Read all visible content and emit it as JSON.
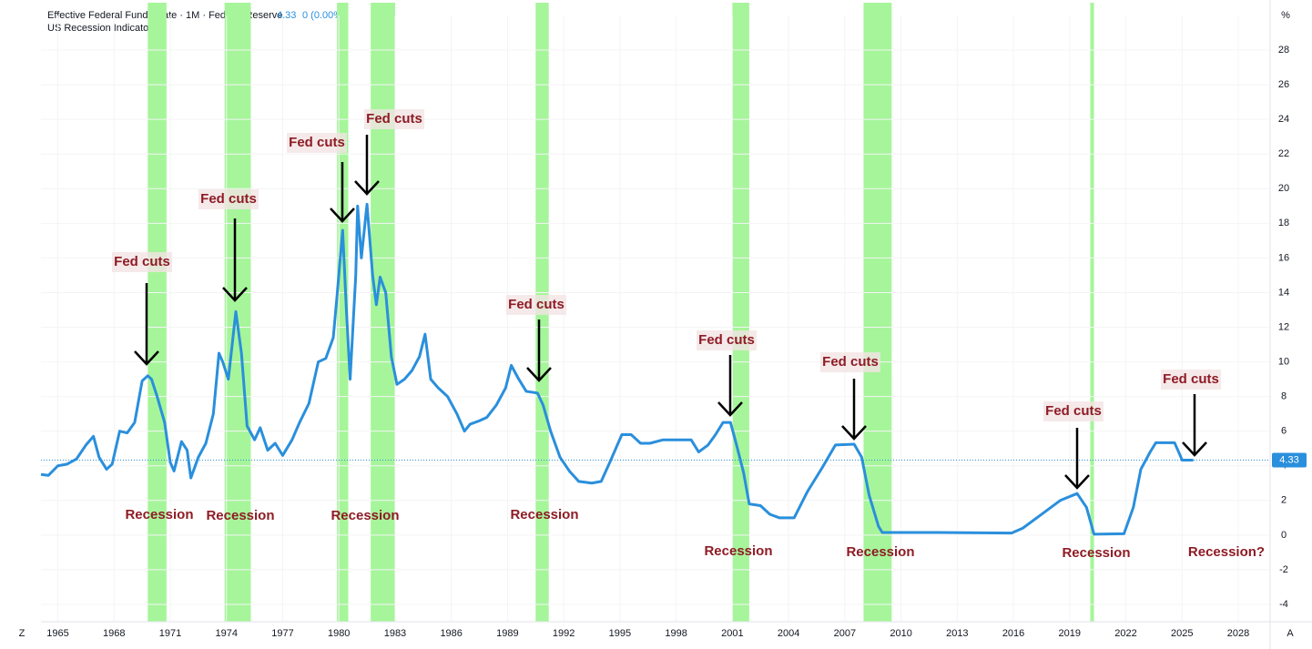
{
  "chart_data": {
    "type": "line",
    "title": "Effective Federal Funds Rate · 1M · Federal Reserve",
    "last_value": "4.33",
    "change": "0 (0.00%)",
    "recession_title": "US Recession Indicator",
    "y_unit": "%",
    "corner_left": "Z",
    "corner_right": "A",
    "series": [
      {
        "color": "#2a8fdc",
        "x": [
          1964.1,
          1964.5,
          1965.0,
          1965.5,
          1966.0,
          1966.5,
          1966.9,
          1967.2,
          1967.6,
          1967.9,
          1968.3,
          1968.7,
          1969.1,
          1969.5,
          1969.8,
          1970.0,
          1970.3,
          1970.7,
          1971.0,
          1971.2,
          1971.6,
          1971.9,
          1972.1,
          1972.5,
          1972.9,
          1973.3,
          1973.6,
          1973.8,
          1974.1,
          1974.5,
          1974.8,
          1975.1,
          1975.5,
          1975.8,
          1976.2,
          1976.6,
          1977.0,
          1977.5,
          1977.9,
          1978.4,
          1978.9,
          1979.3,
          1979.7,
          1979.9,
          1980.2,
          1980.4,
          1980.6,
          1980.9,
          1981.0,
          1981.2,
          1981.5,
          1981.8,
          1982.0,
          1982.2,
          1982.5,
          1982.8,
          1983.1,
          1983.5,
          1983.9,
          1984.3,
          1984.6,
          1984.9,
          1985.3,
          1985.8,
          1986.3,
          1986.7,
          1987.0,
          1987.5,
          1987.9,
          1988.4,
          1988.9,
          1989.2,
          1989.6,
          1990.0,
          1990.6,
          1990.9,
          1991.3,
          1991.8,
          1992.3,
          1992.8,
          1993.5,
          1994.0,
          1994.5,
          1995.1,
          1995.6,
          1996.1,
          1996.6,
          1997.3,
          1998.0,
          1998.8,
          1999.2,
          1999.7,
          2000.1,
          2000.5,
          2000.9,
          2001.2,
          2001.6,
          2001.9,
          2002.5,
          2003.0,
          2003.5,
          2004.3,
          2005.0,
          2005.8,
          2006.5,
          2007.5,
          2007.9,
          2008.3,
          2008.8,
          2009.0,
          2012.0,
          2015.9,
          2016.5,
          2017.5,
          2018.5,
          2019.4,
          2019.9,
          2020.3,
          2021.9,
          2022.4,
          2022.8,
          2023.3,
          2023.6,
          2024.6,
          2024.9,
          2025.0,
          2025.6
        ],
        "values": [
          3.5,
          3.45,
          4.0,
          4.1,
          4.4,
          5.2,
          5.7,
          4.5,
          3.8,
          4.1,
          6.0,
          5.9,
          6.5,
          8.9,
          9.2,
          9.0,
          8.0,
          6.5,
          4.2,
          3.7,
          5.4,
          4.9,
          3.3,
          4.5,
          5.3,
          7.0,
          10.5,
          10.0,
          9.0,
          12.9,
          10.5,
          6.3,
          5.5,
          6.2,
          4.9,
          5.3,
          4.6,
          5.5,
          6.5,
          7.6,
          10.0,
          10.2,
          11.4,
          13.8,
          17.6,
          13.0,
          9.0,
          15.0,
          19.0,
          16.0,
          19.1,
          15.0,
          13.3,
          14.9,
          14.0,
          10.3,
          8.7,
          9.0,
          9.5,
          10.3,
          11.6,
          9.0,
          8.5,
          8.0,
          7.0,
          6.0,
          6.4,
          6.6,
          6.8,
          7.5,
          8.5,
          9.8,
          9.0,
          8.3,
          8.2,
          7.5,
          6.0,
          4.5,
          3.7,
          3.1,
          3.0,
          3.1,
          4.3,
          5.8,
          5.8,
          5.3,
          5.3,
          5.5,
          5.5,
          5.5,
          4.8,
          5.2,
          5.8,
          6.5,
          6.5,
          5.3,
          3.6,
          1.8,
          1.7,
          1.2,
          1.0,
          1.0,
          2.5,
          3.9,
          5.2,
          5.25,
          4.5,
          2.3,
          0.5,
          0.15,
          0.15,
          0.12,
          0.4,
          1.2,
          2.0,
          2.4,
          1.6,
          0.05,
          0.08,
          1.6,
          3.8,
          4.8,
          5.33,
          5.33,
          4.6,
          4.33,
          4.33
        ]
      }
    ],
    "last_point": 4.33,
    "recessions": [
      [
        1969.8,
        1970.8
      ],
      [
        1973.9,
        1975.3
      ],
      [
        1979.9,
        1980.5
      ],
      [
        1981.7,
        1983.0
      ],
      [
        1990.5,
        1991.2
      ],
      [
        2001.0,
        2001.9
      ],
      [
        2008.0,
        2009.5
      ],
      [
        2020.1,
        2020.3
      ]
    ],
    "recession_color": "#a6f59a",
    "xlim": [
      1964.1,
      2029.7
    ],
    "ylim": [
      -5,
      30
    ],
    "xticks": [
      1965,
      1968,
      1971,
      1974,
      1977,
      1980,
      1983,
      1986,
      1989,
      1992,
      1995,
      1998,
      2001,
      2004,
      2007,
      2010,
      2013,
      2016,
      2019,
      2022,
      2025,
      2028
    ],
    "yticks": [
      -4,
      -2,
      0,
      2,
      4,
      6,
      8,
      10,
      12,
      14,
      16,
      18,
      20,
      22,
      24,
      26,
      28
    ],
    "grid": true,
    "fed_cut_labels": [
      "Fed cuts",
      "Fed cuts",
      "Fed cuts",
      "Fed cuts",
      "Fed cuts",
      "Fed cuts",
      "Fed cuts",
      "Fed cuts",
      "Fed cuts"
    ],
    "recession_labels": [
      "Recession",
      "Recession",
      "Recession",
      "Recession",
      "Recession",
      "Recession",
      "Recession",
      "Recession?"
    ]
  }
}
